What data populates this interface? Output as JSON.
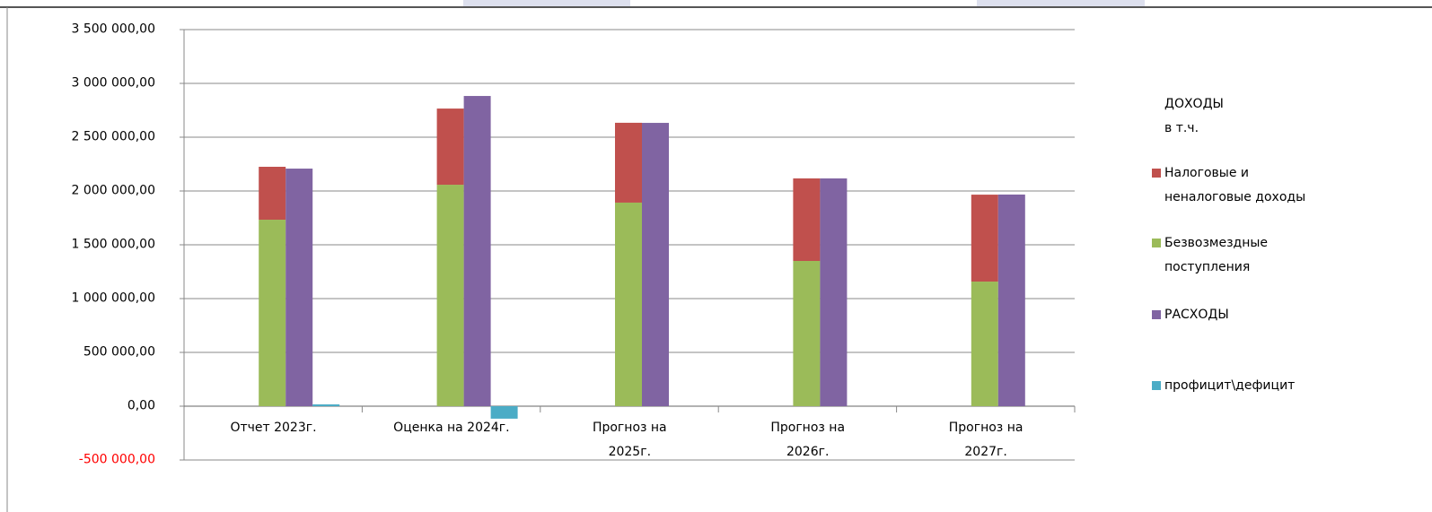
{
  "chart_data": {
    "type": "bar",
    "legend_title": "ДОХОДЫ\nв т.ч.",
    "categories": [
      "Отчет 2023г.",
      "Оценка на  2024г.",
      "Прогноз на\n2025г.",
      "Прогноз на\n2026г.",
      "Прогноз на\n2027г."
    ],
    "series": [
      {
        "name": "Налоговые и\nненалоговые доходы",
        "color": "#c0504d",
        "values": [
          492000,
          708000,
          742000,
          767000,
          808000
        ]
      },
      {
        "name": "Безвозмездные\nпоступления",
        "color": "#9bbb59",
        "values": [
          1733000,
          2058000,
          1892000,
          1350000,
          1158000
        ]
      },
      {
        "name": "РАСХОДЫ",
        "color": "#8064a2",
        "values": [
          2208000,
          2883000,
          2633000,
          2117000,
          1967000
        ]
      },
      {
        "name": "профицит\\дефицит",
        "color": "#4bacc6",
        "values": [
          17000,
          -116000,
          0,
          0,
          0
        ]
      }
    ],
    "ylim": [
      -500000,
      3500000
    ],
    "yticks": [
      {
        "value": -500000,
        "label": "-500 000,00"
      },
      {
        "value": 0,
        "label": "0,00"
      },
      {
        "value": 500000,
        "label": "500 000,00"
      },
      {
        "value": 1000000,
        "label": "1 000 000,00"
      },
      {
        "value": 1500000,
        "label": "1 500 000,00"
      },
      {
        "value": 2000000,
        "label": "2 000 000,00"
      },
      {
        "value": 2500000,
        "label": "2 500 000,00"
      },
      {
        "value": 3000000,
        "label": "3 000 000,00"
      },
      {
        "value": 3500000,
        "label": "3 500 000,00"
      }
    ],
    "negative_tick_color": "#ff0000",
    "grid": true,
    "legend": "right"
  }
}
